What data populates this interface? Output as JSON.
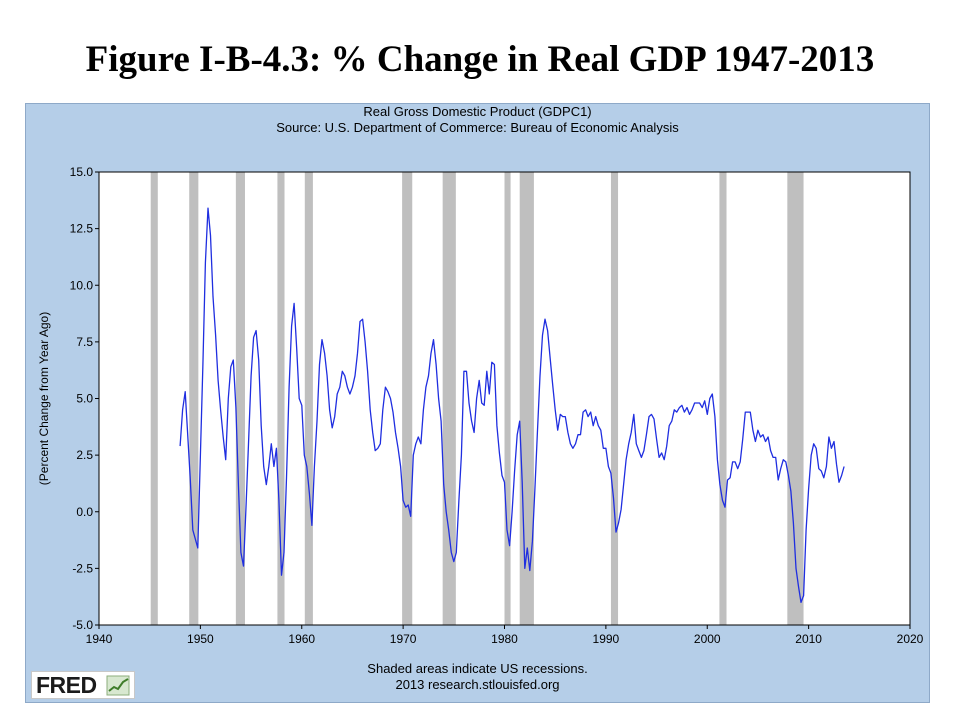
{
  "slide": {
    "title": "Figure I-B-4.3: % Change in Real GDP 1947-2013"
  },
  "header": {
    "title": "Real Gross Domestic Product (GDPC1)",
    "source": "Source: U.S. Department of Commerce: Bureau of Economic Analysis"
  },
  "footer": {
    "note": "Shaded areas indicate US recessions.",
    "credit": "2013 research.stlouisfed.org"
  },
  "logo": {
    "text": "FRED"
  },
  "colors": {
    "panel": "#b5cee8",
    "plot_bg": "#ffffff",
    "line": "#1f2ee0",
    "recession": "#bfbfbf"
  },
  "chart_data": {
    "type": "line",
    "title": "Real Gross Domestic Product (GDPC1)",
    "subtitle": "Source: U.S. Department of Commerce: Bureau of Economic Analysis",
    "xlabel": "",
    "ylabel": "(Percent Change from Year Ago)",
    "xlim": [
      1940,
      2020
    ],
    "ylim": [
      -5.0,
      15.0
    ],
    "x_ticks": [
      "1940",
      "1950",
      "1960",
      "1970",
      "1980",
      "1990",
      "2000",
      "2010",
      "2020"
    ],
    "y_ticks": [
      "-5.0",
      "-2.5",
      "0.0",
      "2.5",
      "5.0",
      "7.5",
      "10.0",
      "12.5",
      "15.0"
    ],
    "grid": false,
    "recessions": [
      [
        1945.1,
        1945.8
      ],
      [
        1948.9,
        1949.8
      ],
      [
        1953.5,
        1954.4
      ],
      [
        1957.6,
        1958.3
      ],
      [
        1960.3,
        1961.1
      ],
      [
        1969.9,
        1970.9
      ],
      [
        1973.9,
        1975.2
      ],
      [
        1980.0,
        1980.6
      ],
      [
        1981.5,
        1982.9
      ],
      [
        1990.5,
        1991.2
      ],
      [
        2001.2,
        2001.9
      ],
      [
        2007.9,
        2009.5
      ]
    ],
    "series": [
      {
        "points": [
          [
            1948.0,
            2.9
          ],
          [
            1948.25,
            4.5
          ],
          [
            1948.5,
            5.3
          ],
          [
            1948.75,
            3.4
          ],
          [
            1949.0,
            1.5
          ],
          [
            1949.25,
            -0.8
          ],
          [
            1949.5,
            -1.2
          ],
          [
            1949.75,
            -1.6
          ],
          [
            1950.0,
            2.5
          ],
          [
            1950.25,
            6.5
          ],
          [
            1950.5,
            11.0
          ],
          [
            1950.75,
            13.4
          ],
          [
            1951.0,
            12.2
          ],
          [
            1951.25,
            9.5
          ],
          [
            1951.5,
            7.8
          ],
          [
            1951.75,
            5.8
          ],
          [
            1952.0,
            4.5
          ],
          [
            1952.25,
            3.3
          ],
          [
            1952.5,
            2.3
          ],
          [
            1952.75,
            5.0
          ],
          [
            1953.0,
            6.4
          ],
          [
            1953.25,
            6.7
          ],
          [
            1953.5,
            4.6
          ],
          [
            1953.75,
            1.2
          ],
          [
            1954.0,
            -1.8
          ],
          [
            1954.25,
            -2.4
          ],
          [
            1954.5,
            0.2
          ],
          [
            1954.75,
            3.0
          ],
          [
            1955.0,
            6.0
          ],
          [
            1955.25,
            7.7
          ],
          [
            1955.5,
            8.0
          ],
          [
            1955.75,
            6.7
          ],
          [
            1956.0,
            3.8
          ],
          [
            1956.25,
            2.0
          ],
          [
            1956.5,
            1.2
          ],
          [
            1956.75,
            2.0
          ],
          [
            1957.0,
            3.0
          ],
          [
            1957.25,
            2.0
          ],
          [
            1957.5,
            2.8
          ],
          [
            1957.75,
            0.5
          ],
          [
            1958.0,
            -2.8
          ],
          [
            1958.25,
            -1.8
          ],
          [
            1958.5,
            1.5
          ],
          [
            1958.75,
            5.5
          ],
          [
            1959.0,
            8.2
          ],
          [
            1959.25,
            9.2
          ],
          [
            1959.5,
            7.2
          ],
          [
            1959.75,
            5.0
          ],
          [
            1960.0,
            4.7
          ],
          [
            1960.25,
            2.5
          ],
          [
            1960.5,
            2.0
          ],
          [
            1960.75,
            0.8
          ],
          [
            1961.0,
            -0.6
          ],
          [
            1961.25,
            2.0
          ],
          [
            1961.5,
            4.0
          ],
          [
            1961.75,
            6.5
          ],
          [
            1962.0,
            7.6
          ],
          [
            1962.25,
            7.0
          ],
          [
            1962.5,
            6.0
          ],
          [
            1962.75,
            4.5
          ],
          [
            1963.0,
            3.7
          ],
          [
            1963.25,
            4.2
          ],
          [
            1963.5,
            5.2
          ],
          [
            1963.75,
            5.5
          ],
          [
            1964.0,
            6.2
          ],
          [
            1964.25,
            6.0
          ],
          [
            1964.5,
            5.5
          ],
          [
            1964.75,
            5.2
          ],
          [
            1965.0,
            5.5
          ],
          [
            1965.25,
            6.0
          ],
          [
            1965.5,
            7.0
          ],
          [
            1965.75,
            8.4
          ],
          [
            1966.0,
            8.5
          ],
          [
            1966.25,
            7.5
          ],
          [
            1966.5,
            6.2
          ],
          [
            1966.75,
            4.5
          ],
          [
            1967.0,
            3.5
          ],
          [
            1967.25,
            2.7
          ],
          [
            1967.5,
            2.8
          ],
          [
            1967.75,
            3.0
          ],
          [
            1968.0,
            4.5
          ],
          [
            1968.25,
            5.5
          ],
          [
            1968.5,
            5.3
          ],
          [
            1968.75,
            5.0
          ],
          [
            1969.0,
            4.4
          ],
          [
            1969.25,
            3.5
          ],
          [
            1969.5,
            2.8
          ],
          [
            1969.75,
            2.0
          ],
          [
            1970.0,
            0.5
          ],
          [
            1970.25,
            0.2
          ],
          [
            1970.5,
            0.3
          ],
          [
            1970.75,
            -0.2
          ],
          [
            1971.0,
            2.5
          ],
          [
            1971.25,
            3.0
          ],
          [
            1971.5,
            3.3
          ],
          [
            1971.75,
            3.0
          ],
          [
            1972.0,
            4.5
          ],
          [
            1972.25,
            5.5
          ],
          [
            1972.5,
            6.0
          ],
          [
            1972.75,
            7.0
          ],
          [
            1973.0,
            7.6
          ],
          [
            1973.25,
            6.5
          ],
          [
            1973.5,
            5.0
          ],
          [
            1973.75,
            4.0
          ],
          [
            1974.0,
            1.2
          ],
          [
            1974.25,
            0.0
          ],
          [
            1974.5,
            -0.8
          ],
          [
            1974.75,
            -1.8
          ],
          [
            1975.0,
            -2.2
          ],
          [
            1975.25,
            -1.8
          ],
          [
            1975.5,
            0.5
          ],
          [
            1975.75,
            2.5
          ],
          [
            1976.0,
            6.2
          ],
          [
            1976.25,
            6.2
          ],
          [
            1976.5,
            4.8
          ],
          [
            1976.75,
            4.0
          ],
          [
            1977.0,
            3.5
          ],
          [
            1977.25,
            5.0
          ],
          [
            1977.5,
            5.8
          ],
          [
            1977.75,
            4.8
          ],
          [
            1978.0,
            4.7
          ],
          [
            1978.25,
            6.2
          ],
          [
            1978.5,
            5.2
          ],
          [
            1978.75,
            6.6
          ],
          [
            1979.0,
            6.5
          ],
          [
            1979.25,
            3.8
          ],
          [
            1979.5,
            2.6
          ],
          [
            1979.75,
            1.6
          ],
          [
            1980.0,
            1.3
          ],
          [
            1980.25,
            -0.8
          ],
          [
            1980.5,
            -1.5
          ],
          [
            1980.75,
            0.0
          ],
          [
            1981.0,
            1.8
          ],
          [
            1981.25,
            3.4
          ],
          [
            1981.5,
            4.0
          ],
          [
            1981.75,
            1.3
          ],
          [
            1982.0,
            -2.5
          ],
          [
            1982.25,
            -1.6
          ],
          [
            1982.5,
            -2.6
          ],
          [
            1982.75,
            -1.3
          ],
          [
            1983.0,
            1.0
          ],
          [
            1983.25,
            3.5
          ],
          [
            1983.5,
            6.0
          ],
          [
            1983.75,
            7.8
          ],
          [
            1984.0,
            8.5
          ],
          [
            1984.25,
            8.0
          ],
          [
            1984.5,
            6.8
          ],
          [
            1984.75,
            5.6
          ],
          [
            1985.0,
            4.5
          ],
          [
            1985.25,
            3.6
          ],
          [
            1985.5,
            4.3
          ],
          [
            1985.75,
            4.2
          ],
          [
            1986.0,
            4.2
          ],
          [
            1986.25,
            3.5
          ],
          [
            1986.5,
            3.0
          ],
          [
            1986.75,
            2.8
          ],
          [
            1987.0,
            3.0
          ],
          [
            1987.25,
            3.4
          ],
          [
            1987.5,
            3.4
          ],
          [
            1987.75,
            4.4
          ],
          [
            1988.0,
            4.5
          ],
          [
            1988.25,
            4.2
          ],
          [
            1988.5,
            4.4
          ],
          [
            1988.75,
            3.8
          ],
          [
            1989.0,
            4.2
          ],
          [
            1989.25,
            3.8
          ],
          [
            1989.5,
            3.6
          ],
          [
            1989.75,
            2.8
          ],
          [
            1990.0,
            2.8
          ],
          [
            1990.25,
            2.0
          ],
          [
            1990.5,
            1.7
          ],
          [
            1990.75,
            0.6
          ],
          [
            1991.0,
            -0.9
          ],
          [
            1991.25,
            -0.5
          ],
          [
            1991.5,
            0.1
          ],
          [
            1991.75,
            1.2
          ],
          [
            1992.0,
            2.3
          ],
          [
            1992.25,
            3.0
          ],
          [
            1992.5,
            3.5
          ],
          [
            1992.75,
            4.3
          ],
          [
            1993.0,
            3.0
          ],
          [
            1993.25,
            2.7
          ],
          [
            1993.5,
            2.4
          ],
          [
            1993.75,
            2.7
          ],
          [
            1994.0,
            3.4
          ],
          [
            1994.25,
            4.2
          ],
          [
            1994.5,
            4.3
          ],
          [
            1994.75,
            4.1
          ],
          [
            1995.0,
            3.2
          ],
          [
            1995.25,
            2.4
          ],
          [
            1995.5,
            2.6
          ],
          [
            1995.75,
            2.3
          ],
          [
            1996.0,
            2.9
          ],
          [
            1996.25,
            3.8
          ],
          [
            1996.5,
            4.0
          ],
          [
            1996.75,
            4.5
          ],
          [
            1997.0,
            4.4
          ],
          [
            1997.25,
            4.6
          ],
          [
            1997.5,
            4.7
          ],
          [
            1997.75,
            4.4
          ],
          [
            1998.0,
            4.6
          ],
          [
            1998.25,
            4.3
          ],
          [
            1998.5,
            4.5
          ],
          [
            1998.75,
            4.8
          ],
          [
            1999.0,
            4.8
          ],
          [
            1999.25,
            4.8
          ],
          [
            1999.5,
            4.6
          ],
          [
            1999.75,
            4.9
          ],
          [
            2000.0,
            4.3
          ],
          [
            2000.25,
            5.0
          ],
          [
            2000.5,
            5.2
          ],
          [
            2000.75,
            4.2
          ],
          [
            2001.0,
            2.3
          ],
          [
            2001.25,
            1.2
          ],
          [
            2001.5,
            0.5
          ],
          [
            2001.75,
            0.2
          ],
          [
            2002.0,
            1.4
          ],
          [
            2002.25,
            1.5
          ],
          [
            2002.5,
            2.2
          ],
          [
            2002.75,
            2.2
          ],
          [
            2003.0,
            1.9
          ],
          [
            2003.25,
            2.2
          ],
          [
            2003.5,
            3.2
          ],
          [
            2003.75,
            4.4
          ],
          [
            2004.0,
            4.4
          ],
          [
            2004.25,
            4.4
          ],
          [
            2004.5,
            3.6
          ],
          [
            2004.75,
            3.1
          ],
          [
            2005.0,
            3.6
          ],
          [
            2005.25,
            3.3
          ],
          [
            2005.5,
            3.4
          ],
          [
            2005.75,
            3.1
          ],
          [
            2006.0,
            3.3
          ],
          [
            2006.25,
            2.7
          ],
          [
            2006.5,
            2.4
          ],
          [
            2006.75,
            2.4
          ],
          [
            2007.0,
            1.4
          ],
          [
            2007.25,
            1.9
          ],
          [
            2007.5,
            2.3
          ],
          [
            2007.75,
            2.2
          ],
          [
            2008.0,
            1.6
          ],
          [
            2008.25,
            0.9
          ],
          [
            2008.5,
            -0.5
          ],
          [
            2008.75,
            -2.5
          ],
          [
            2009.0,
            -3.3
          ],
          [
            2009.25,
            -4.0
          ],
          [
            2009.5,
            -3.7
          ],
          [
            2009.75,
            -0.8
          ],
          [
            2010.0,
            1.0
          ],
          [
            2010.25,
            2.5
          ],
          [
            2010.5,
            3.0
          ],
          [
            2010.75,
            2.8
          ],
          [
            2011.0,
            1.9
          ],
          [
            2011.25,
            1.8
          ],
          [
            2011.5,
            1.5
          ],
          [
            2011.75,
            2.0
          ],
          [
            2012.0,
            3.3
          ],
          [
            2012.25,
            2.8
          ],
          [
            2012.5,
            3.1
          ],
          [
            2012.75,
            2.1
          ],
          [
            2013.0,
            1.3
          ],
          [
            2013.25,
            1.6
          ],
          [
            2013.5,
            2.0
          ]
        ]
      }
    ]
  }
}
